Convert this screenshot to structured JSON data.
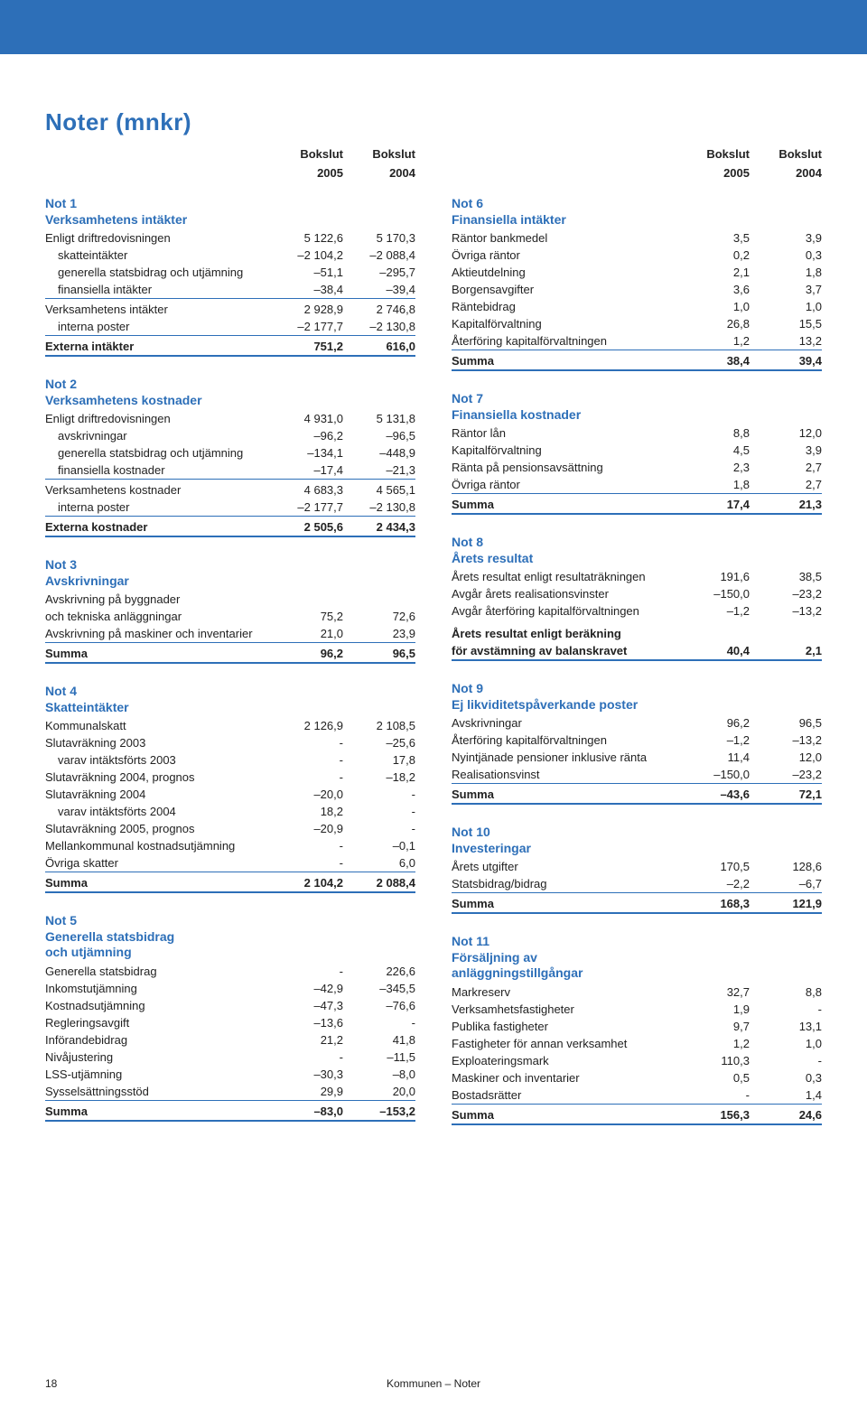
{
  "colors": {
    "accent": "#2d6fb8",
    "text": "#222222",
    "rule": "#2d6fb8",
    "background": "#ffffff"
  },
  "page_title": "Noter (mnkr)",
  "col_headers": {
    "c1_top": "Bokslut",
    "c1_bot": "2005",
    "c2_top": "Bokslut",
    "c2_bot": "2004"
  },
  "footer": {
    "page_no": "18",
    "section": "Kommunen – Noter"
  },
  "not1": {
    "title": "Not 1\nVerksamhetens intäkter",
    "rows": [
      {
        "label": "Enligt driftredovisningen",
        "v1": "5 122,6",
        "v2": "5 170,3"
      },
      {
        "label": "skatteintäkter",
        "v1": "–2 104,2",
        "v2": "–2 088,4",
        "indent": true
      },
      {
        "label": "generella statsbidrag och utjämning",
        "v1": "–51,1",
        "v2": "–295,7",
        "indent": true
      },
      {
        "label": "finansiella intäkter",
        "v1": "–38,4",
        "v2": "–39,4",
        "indent": true
      }
    ],
    "mid": [
      {
        "label": "Verksamhetens intäkter",
        "v1": "2 928,9",
        "v2": "2 746,8"
      },
      {
        "label": "interna poster",
        "v1": "–2 177,7",
        "v2": "–2 130,8",
        "indent": true
      }
    ],
    "sum": {
      "label": "Externa intäkter",
      "v1": "751,2",
      "v2": "616,0"
    }
  },
  "not2": {
    "title": "Not 2\nVerksamhetens kostnader",
    "rows": [
      {
        "label": "Enligt driftredovisningen",
        "v1": "4 931,0",
        "v2": "5 131,8"
      },
      {
        "label": "avskrivningar",
        "v1": "–96,2",
        "v2": "–96,5",
        "indent": true
      },
      {
        "label": "generella statsbidrag och utjämning",
        "v1": "–134,1",
        "v2": "–448,9",
        "indent": true
      },
      {
        "label": "finansiella kostnader",
        "v1": "–17,4",
        "v2": "–21,3",
        "indent": true
      }
    ],
    "mid": [
      {
        "label": "Verksamhetens kostnader",
        "v1": "4 683,3",
        "v2": "4 565,1"
      },
      {
        "label": "interna poster",
        "v1": "–2 177,7",
        "v2": "–2 130,8",
        "indent": true
      }
    ],
    "sum": {
      "label": "Externa kostnader",
      "v1": "2 505,6",
      "v2": "2 434,3"
    }
  },
  "not3": {
    "title": "Not 3\nAvskrivningar",
    "rows": [
      {
        "label": "Avskrivning på byggnader"
      },
      {
        "label": "och tekniska anläggningar",
        "v1": "75,2",
        "v2": "72,6"
      },
      {
        "label": "Avskrivning på maskiner och inventarier",
        "v1": "21,0",
        "v2": "23,9"
      }
    ],
    "sum": {
      "label": "Summa",
      "v1": "96,2",
      "v2": "96,5"
    }
  },
  "not4": {
    "title": "Not 4\nSkatteintäkter",
    "rows": [
      {
        "label": "Kommunalskatt",
        "v1": "2 126,9",
        "v2": "2 108,5"
      },
      {
        "label": "Slutavräkning 2003",
        "v1": "-",
        "v2": "–25,6"
      },
      {
        "label": "varav intäktsförts 2003",
        "v1": "-",
        "v2": "17,8",
        "indent": true
      },
      {
        "label": "Slutavräkning 2004, prognos",
        "v1": "-",
        "v2": "–18,2"
      },
      {
        "label": "Slutavräkning 2004",
        "v1": "–20,0",
        "v2": "-"
      },
      {
        "label": "varav intäktsförts 2004",
        "v1": "18,2",
        "v2": "-",
        "indent": true
      },
      {
        "label": "Slutavräkning 2005, prognos",
        "v1": "–20,9",
        "v2": "-"
      },
      {
        "label": "Mellankommunal kostnadsutjämning",
        "v1": "-",
        "v2": "–0,1"
      },
      {
        "label": "Övriga skatter",
        "v1": "-",
        "v2": "6,0"
      }
    ],
    "sum": {
      "label": "Summa",
      "v1": "2 104,2",
      "v2": "2 088,4"
    }
  },
  "not5": {
    "title": "Not 5\nGenerella statsbidrag\noch utjämning",
    "rows": [
      {
        "label": "Generella statsbidrag",
        "v1": "-",
        "v2": "226,6"
      },
      {
        "label": "Inkomstutjämning",
        "v1": "–42,9",
        "v2": "–345,5"
      },
      {
        "label": "Kostnadsutjämning",
        "v1": "–47,3",
        "v2": "–76,6"
      },
      {
        "label": "Regleringsavgift",
        "v1": "–13,6",
        "v2": "-"
      },
      {
        "label": "Införandebidrag",
        "v1": "21,2",
        "v2": "41,8"
      },
      {
        "label": "Nivåjustering",
        "v1": "-",
        "v2": "–11,5"
      },
      {
        "label": "LSS-utjämning",
        "v1": "–30,3",
        "v2": "–8,0"
      },
      {
        "label": "Sysselsättningsstöd",
        "v1": "29,9",
        "v2": "20,0"
      }
    ],
    "sum": {
      "label": "Summa",
      "v1": "–83,0",
      "v2": "–153,2"
    }
  },
  "not6": {
    "title": "Not 6\nFinansiella intäkter",
    "rows": [
      {
        "label": "Räntor bankmedel",
        "v1": "3,5",
        "v2": "3,9"
      },
      {
        "label": "Övriga räntor",
        "v1": "0,2",
        "v2": "0,3"
      },
      {
        "label": "Aktieutdelning",
        "v1": "2,1",
        "v2": "1,8"
      },
      {
        "label": "Borgensavgifter",
        "v1": "3,6",
        "v2": "3,7"
      },
      {
        "label": "Räntebidrag",
        "v1": "1,0",
        "v2": "1,0"
      },
      {
        "label": "Kapitalförvaltning",
        "v1": "26,8",
        "v2": "15,5"
      },
      {
        "label": "Återföring kapitalförvaltningen",
        "v1": "1,2",
        "v2": "13,2"
      }
    ],
    "sum": {
      "label": "Summa",
      "v1": "38,4",
      "v2": "39,4"
    }
  },
  "not7": {
    "title": "Not 7\nFinansiella kostnader",
    "rows": [
      {
        "label": "Räntor lån",
        "v1": "8,8",
        "v2": "12,0"
      },
      {
        "label": "Kapitalförvaltning",
        "v1": "4,5",
        "v2": "3,9"
      },
      {
        "label": "Ränta på pensionsavsättning",
        "v1": "2,3",
        "v2": "2,7"
      },
      {
        "label": "Övriga räntor",
        "v1": "1,8",
        "v2": "2,7"
      }
    ],
    "sum": {
      "label": "Summa",
      "v1": "17,4",
      "v2": "21,3"
    }
  },
  "not8": {
    "title": "Not 8\nÅrets resultat",
    "rows": [
      {
        "label": "Årets resultat enligt resultaträkningen",
        "v1": "191,6",
        "v2": "38,5"
      },
      {
        "label": "Avgår årets realisationsvinster",
        "v1": "–150,0",
        "v2": "–23,2"
      },
      {
        "label": "Avgår återföring kapitalförvaltningen",
        "v1": "–1,2",
        "v2": "–13,2"
      }
    ],
    "sum_multi": {
      "l1": "Årets resultat enligt beräkning",
      "l2": "för avstämning av balanskravet",
      "v1": "40,4",
      "v2": "2,1"
    }
  },
  "not9": {
    "title": "Not 9\nEj likviditetspåverkande poster",
    "rows": [
      {
        "label": "Avskrivningar",
        "v1": "96,2",
        "v2": "96,5"
      },
      {
        "label": "Återföring kapitalförvaltningen",
        "v1": "–1,2",
        "v2": "–13,2"
      },
      {
        "label": "Nyintjänade pensioner inklusive ränta",
        "v1": "11,4",
        "v2": "12,0"
      },
      {
        "label": "Realisationsvinst",
        "v1": "–150,0",
        "v2": "–23,2"
      }
    ],
    "sum": {
      "label": "Summa",
      "v1": "–43,6",
      "v2": "72,1"
    }
  },
  "not10": {
    "title": "Not 10\nInvesteringar",
    "rows": [
      {
        "label": "Årets utgifter",
        "v1": "170,5",
        "v2": "128,6"
      },
      {
        "label": "Statsbidrag/bidrag",
        "v1": "–2,2",
        "v2": "–6,7"
      }
    ],
    "sum": {
      "label": "Summa",
      "v1": "168,3",
      "v2": "121,9"
    }
  },
  "not11": {
    "title": "Not 11\nFörsäljning av\nanläggningstillgångar",
    "rows": [
      {
        "label": "Markreserv",
        "v1": "32,7",
        "v2": "8,8"
      },
      {
        "label": "Verksamhetsfastigheter",
        "v1": "1,9",
        "v2": "-"
      },
      {
        "label": "Publika fastigheter",
        "v1": "9,7",
        "v2": "13,1"
      },
      {
        "label": "Fastigheter för annan verksamhet",
        "v1": "1,2",
        "v2": "1,0"
      },
      {
        "label": "Exploateringsmark",
        "v1": "110,3",
        "v2": "-"
      },
      {
        "label": "Maskiner och inventarier",
        "v1": "0,5",
        "v2": "0,3"
      },
      {
        "label": "Bostadsrätter",
        "v1": "-",
        "v2": "1,4"
      }
    ],
    "sum": {
      "label": "Summa",
      "v1": "156,3",
      "v2": "24,6"
    }
  }
}
